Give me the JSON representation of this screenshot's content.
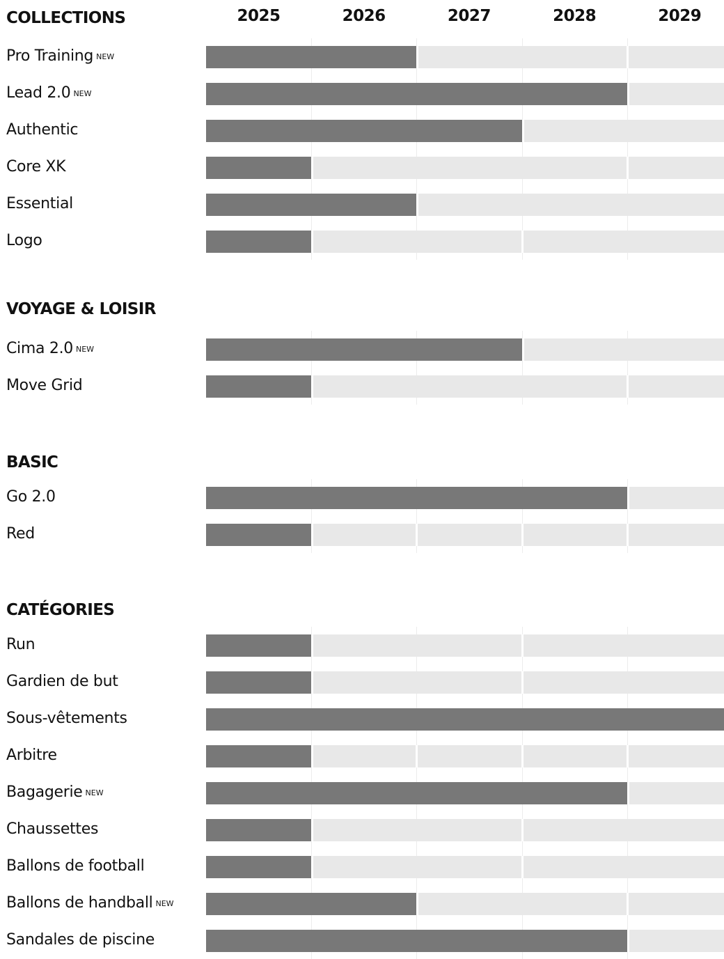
{
  "chart_data": {
    "type": "bar",
    "orientation": "horizontal-timeline",
    "years": [
      "2025",
      "2026",
      "2027",
      "2028",
      "2029"
    ],
    "xlim": [
      2025,
      2030
    ],
    "new_tag": "NEW",
    "groups": [
      {
        "name": "COLLECTIONS",
        "items": [
          {
            "label": "Pro Training",
            "new": true,
            "end": 2027,
            "dividers": [
              2029
            ]
          },
          {
            "label": "Lead 2.0",
            "new": true,
            "end": 2029,
            "dividers": []
          },
          {
            "label": "Authentic",
            "new": false,
            "end": 2028,
            "dividers": []
          },
          {
            "label": "Core XK",
            "new": false,
            "end": 2026,
            "dividers": [
              2029
            ]
          },
          {
            "label": "Essential",
            "new": false,
            "end": 2027,
            "dividers": []
          },
          {
            "label": "Logo",
            "new": false,
            "end": 2026,
            "dividers": [
              2028
            ]
          }
        ]
      },
      {
        "name": "VOYAGE & LOISIR",
        "items": [
          {
            "label": "Cima 2.0",
            "new": true,
            "end": 2028,
            "dividers": []
          },
          {
            "label": "Move Grid",
            "new": false,
            "end": 2026,
            "dividers": [
              2029
            ]
          }
        ]
      },
      {
        "name": "BASIC",
        "items": [
          {
            "label": "Go 2.0",
            "new": false,
            "end": 2029,
            "dividers": []
          },
          {
            "label": "Red",
            "new": false,
            "end": 2026,
            "dividers": [
              2027,
              2028,
              2029
            ]
          }
        ]
      },
      {
        "name": "CATÉGORIES",
        "items": [
          {
            "label": "Run",
            "new": false,
            "end": 2026,
            "dividers": [
              2028
            ]
          },
          {
            "label": "Gardien de but",
            "new": false,
            "end": 2026,
            "dividers": [
              2028
            ]
          },
          {
            "label": "Sous-vêtements",
            "new": false,
            "end": 2030,
            "dividers": []
          },
          {
            "label": "Arbitre",
            "new": false,
            "end": 2026,
            "dividers": [
              2027,
              2028,
              2029
            ]
          },
          {
            "label": "Bagagerie",
            "new": true,
            "end": 2029,
            "dividers": []
          },
          {
            "label": "Chaussettes",
            "new": false,
            "end": 2026,
            "dividers": [
              2028
            ]
          },
          {
            "label": "Ballons de football",
            "new": false,
            "end": 2026,
            "dividers": [
              2028
            ]
          },
          {
            "label": "Ballons de handball",
            "new": true,
            "end": 2027,
            "dividers": [
              2029
            ]
          },
          {
            "label": "Sandales de piscine",
            "new": false,
            "end": 2029,
            "dividers": []
          }
        ]
      }
    ],
    "colors": {
      "filled": "#787878",
      "empty": "#e8e8e8",
      "text": "#111111"
    },
    "grid": true,
    "legend": "none"
  }
}
